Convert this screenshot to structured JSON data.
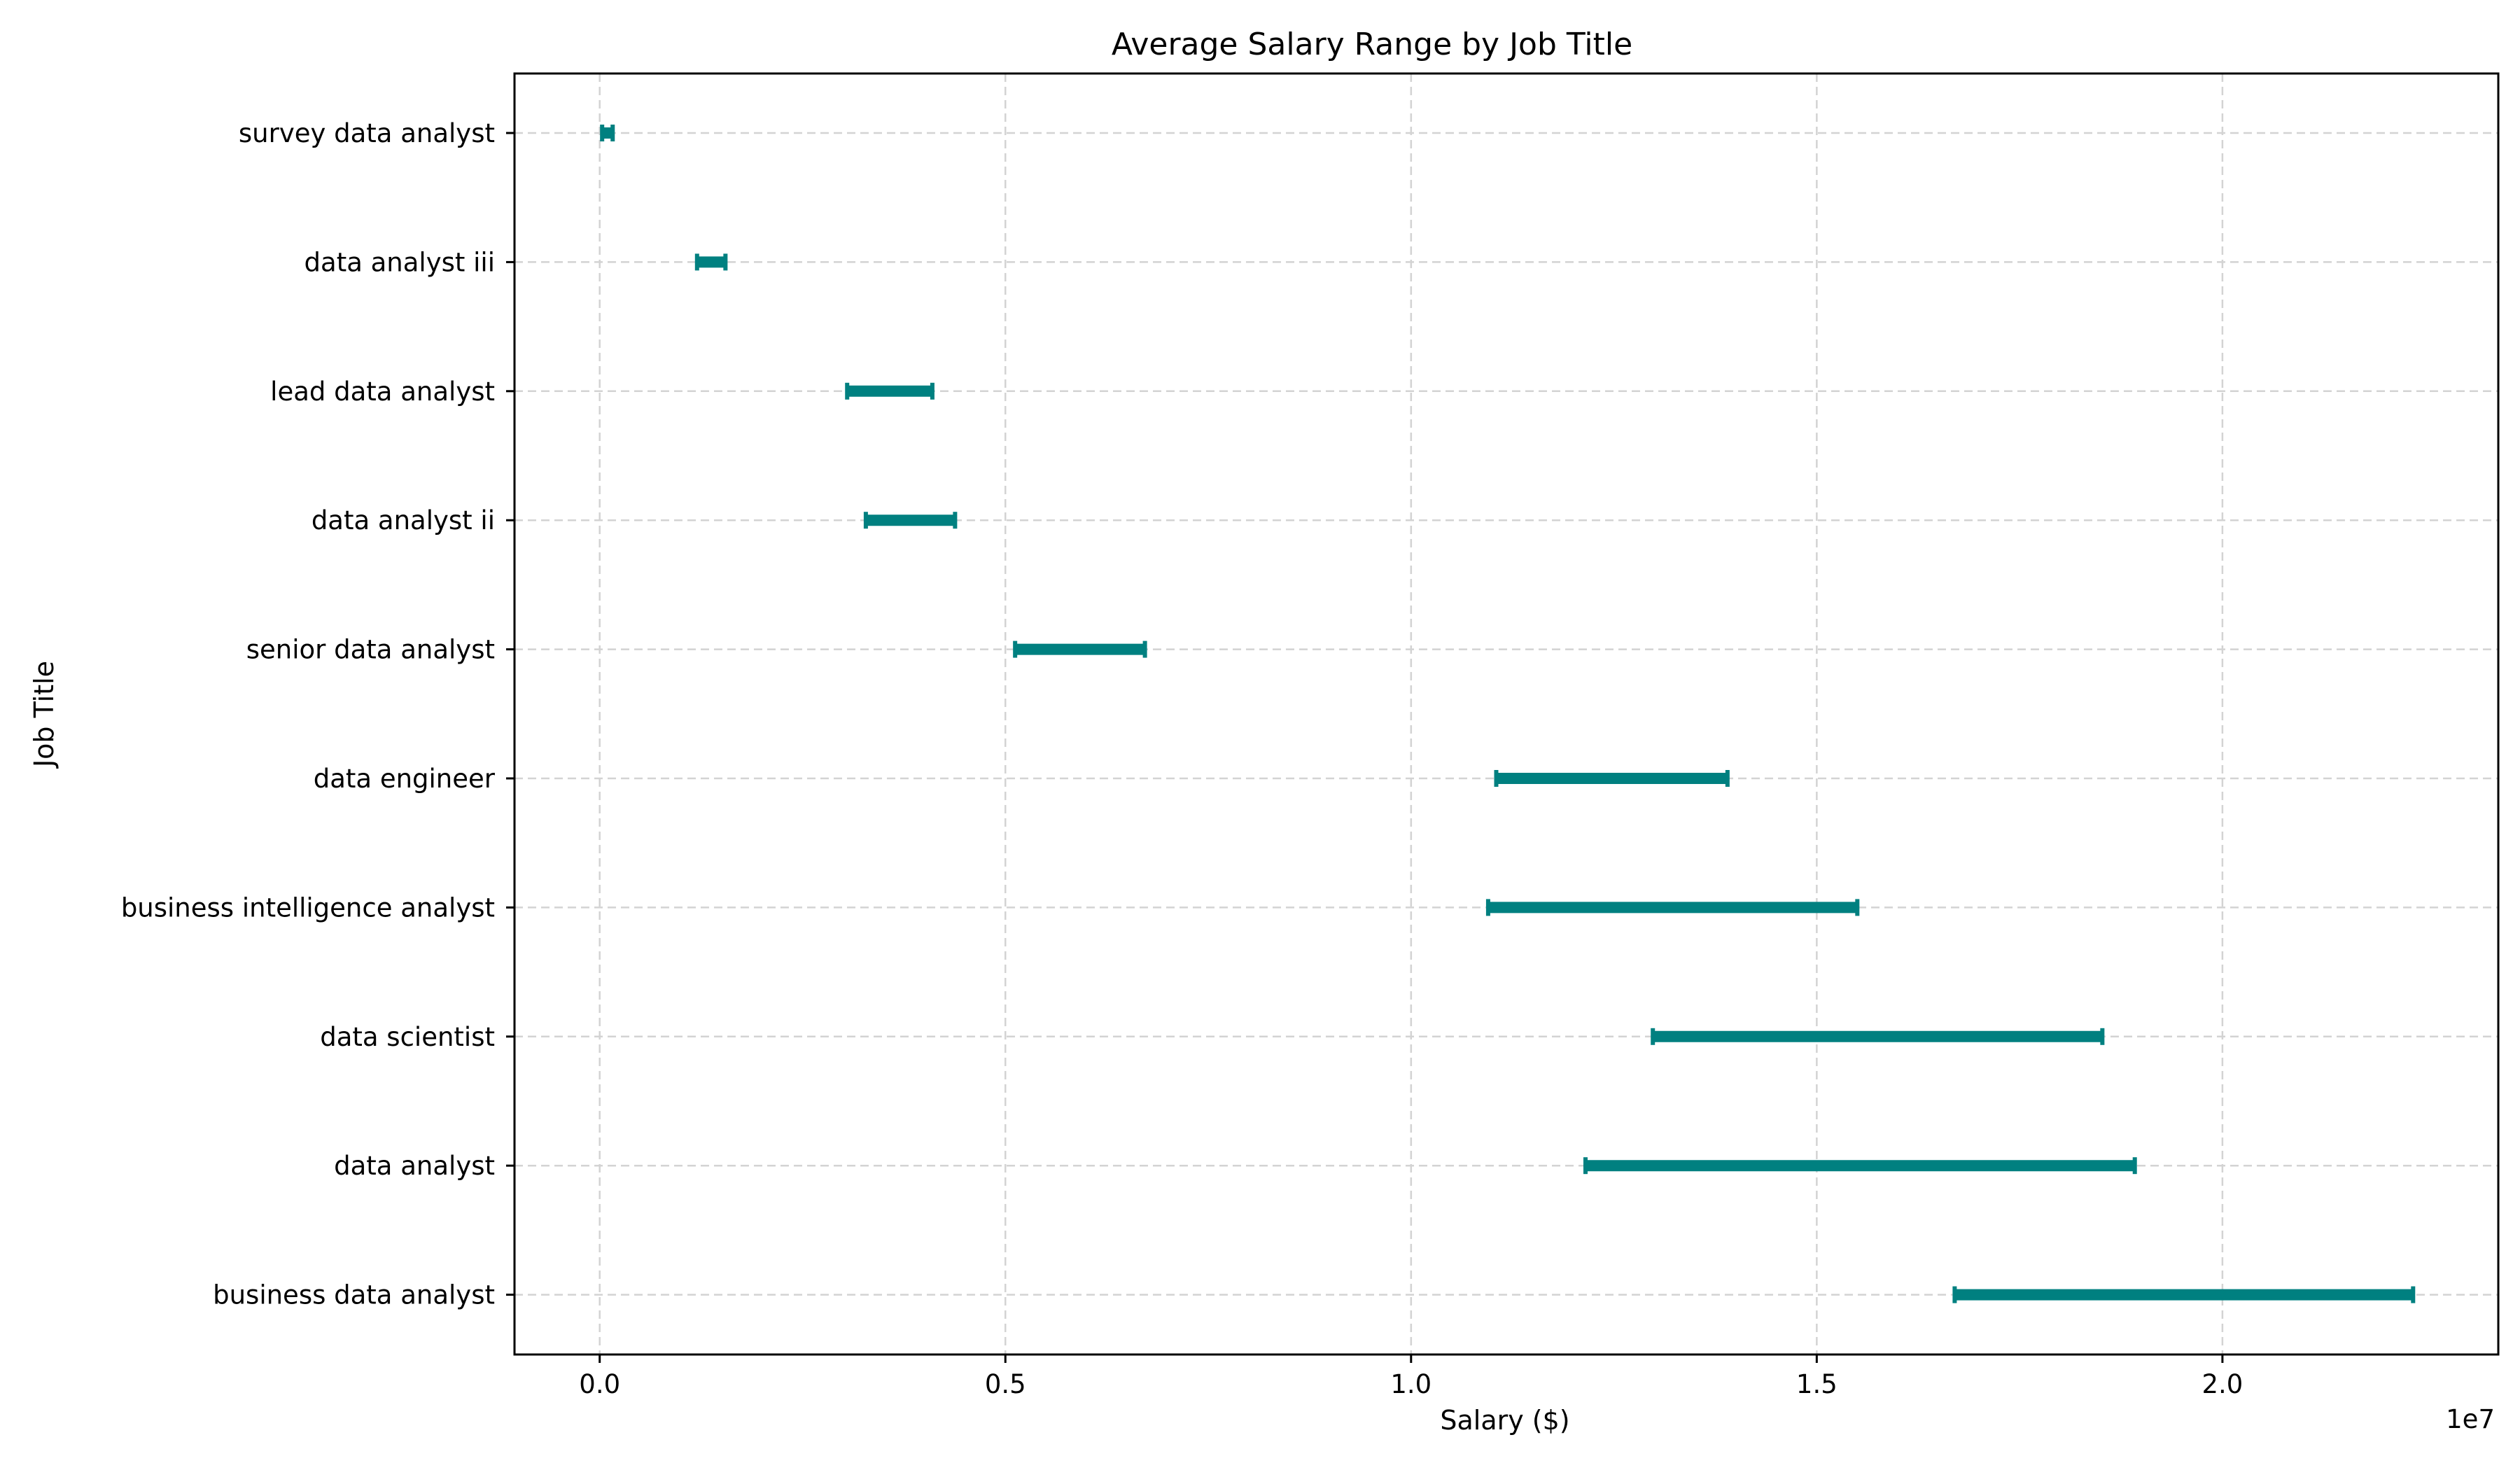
{
  "chart_data": {
    "type": "range",
    "title": "Average Salary Range by Job Title",
    "xlabel": "Salary ($)",
    "ylabel": "Job Title",
    "x_scale_label": "1e7",
    "xlim": [
      -1050000,
      23400000
    ],
    "x_ticks": [
      0,
      5000000,
      10000000,
      15000000,
      20000000
    ],
    "x_tick_labels": [
      "0.0",
      "0.5",
      "1.0",
      "1.5",
      "2.0"
    ],
    "grid": true,
    "color": "#008080",
    "categories": [
      "survey data analyst",
      "data analyst iii",
      "lead data analyst",
      "data analyst ii",
      "senior data analyst",
      "data engineer",
      "business intelligence analyst",
      "data scientist",
      "data analyst",
      "business data analyst"
    ],
    "series": [
      {
        "min": 30000,
        "max": 160000
      },
      {
        "min": 1200000,
        "max": 1550000
      },
      {
        "min": 3050000,
        "max": 4100000
      },
      {
        "min": 3280000,
        "max": 4380000
      },
      {
        "min": 5120000,
        "max": 6720000
      },
      {
        "min": 11050000,
        "max": 13900000
      },
      {
        "min": 10950000,
        "max": 15500000
      },
      {
        "min": 12980000,
        "max": 18520000
      },
      {
        "min": 12150000,
        "max": 18920000
      },
      {
        "min": 16700000,
        "max": 22350000
      }
    ]
  }
}
